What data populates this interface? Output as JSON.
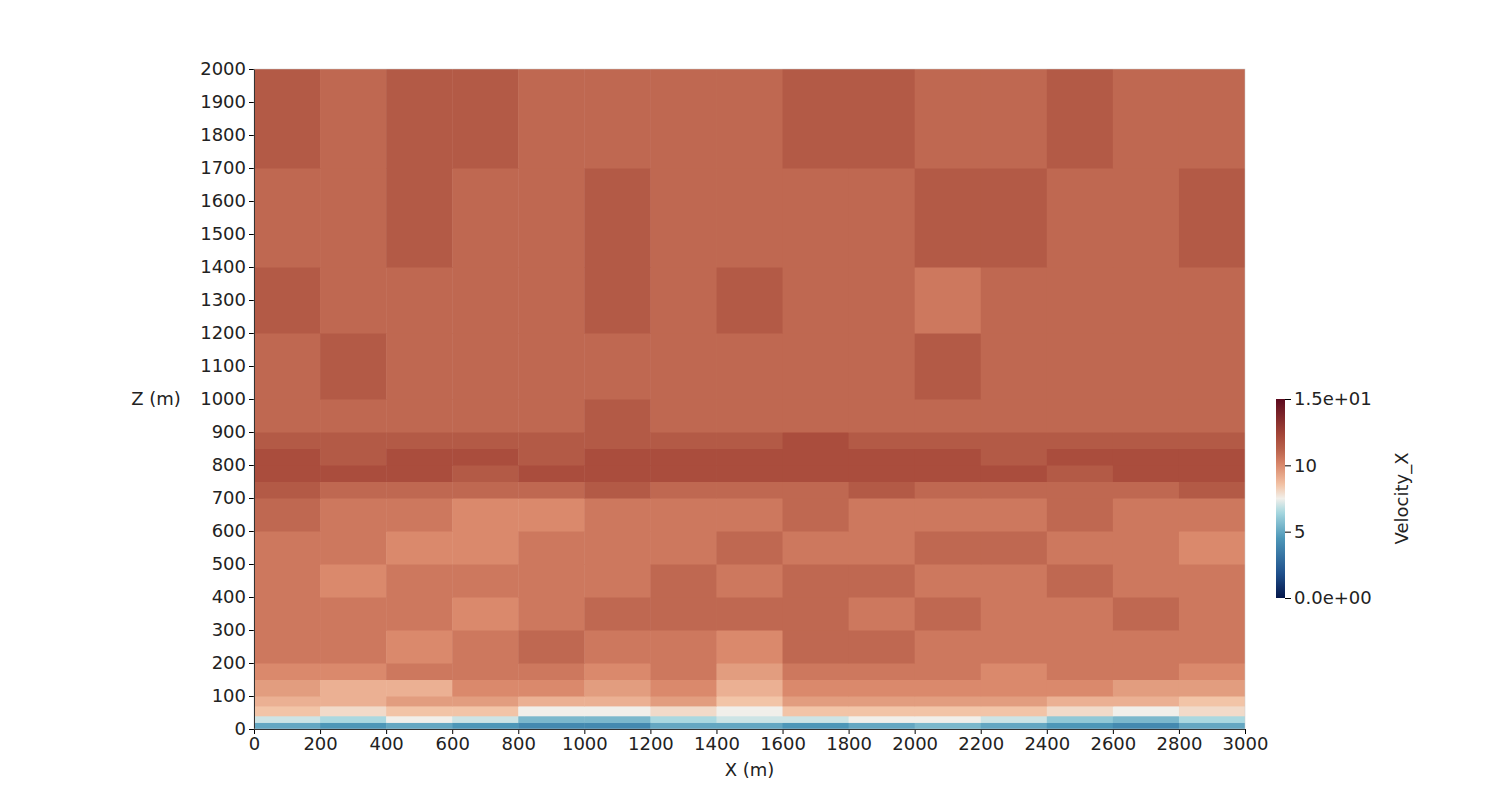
{
  "chart_data": {
    "type": "heatmap",
    "xlabel": "X (m)",
    "ylabel": "Z (m)",
    "xlim": [
      0,
      3000
    ],
    "ylim": [
      0,
      2000
    ],
    "xticks": [
      0,
      200,
      400,
      600,
      800,
      1000,
      1200,
      1400,
      1600,
      1800,
      2000,
      2200,
      2400,
      2600,
      2800,
      3000
    ],
    "yticks": [
      0,
      100,
      200,
      300,
      400,
      500,
      600,
      700,
      800,
      900,
      1000,
      1100,
      1200,
      1300,
      1400,
      1500,
      1600,
      1700,
      1800,
      1900,
      2000
    ],
    "x_edges": [
      0,
      200,
      400,
      600,
      800,
      1000,
      1200,
      1400,
      1600,
      1800,
      2000,
      2200,
      2400,
      2600,
      2800,
      3000
    ],
    "z_edges": [
      0,
      20,
      40,
      70,
      100,
      150,
      200,
      300,
      400,
      500,
      600,
      700,
      750,
      800,
      850,
      900,
      1000,
      1200,
      1400,
      1700,
      2000
    ],
    "values": [
      [
        5,
        4.5,
        5,
        4.5,
        4,
        4,
        5,
        5,
        4.5,
        5,
        5.5,
        5,
        4.5,
        4,
        5
      ],
      [
        7,
        6.5,
        7.5,
        7,
        5.5,
        5.5,
        6.5,
        7,
        7,
        7.5,
        7.5,
        7,
        6,
        5.5,
        6.5
      ],
      [
        8.5,
        8,
        8.5,
        8.5,
        7.5,
        7.5,
        8,
        7.5,
        8.5,
        8.5,
        8.5,
        8.5,
        8,
        7.5,
        8
      ],
      [
        9,
        9,
        9.5,
        9.5,
        9,
        9,
        9.5,
        8.5,
        9.5,
        9.5,
        9.5,
        9.5,
        9,
        9,
        8.5
      ],
      [
        9.5,
        9,
        9,
        10,
        10,
        9.5,
        10,
        9,
        10,
        10,
        10,
        10,
        10,
        9.5,
        9.5
      ],
      [
        10,
        10,
        10.5,
        10.5,
        10.5,
        10,
        10.5,
        9.5,
        10.5,
        10.5,
        10.5,
        10,
        10.5,
        10.5,
        10
      ],
      [
        10.5,
        10.5,
        10,
        10.5,
        11,
        10.5,
        10.5,
        10,
        11,
        11,
        10.5,
        10.5,
        10.5,
        10.5,
        10.5
      ],
      [
        10.5,
        10.5,
        10.5,
        10,
        10.5,
        11,
        11,
        11,
        11,
        10.5,
        11,
        10.5,
        10.5,
        11,
        10.5
      ],
      [
        10.5,
        10,
        10.5,
        10.5,
        10.5,
        10.5,
        11,
        10.5,
        11,
        11,
        10.5,
        10.5,
        11,
        10.5,
        10.5
      ],
      [
        10.5,
        10.5,
        10,
        10,
        10.5,
        10.5,
        10.5,
        11,
        10.5,
        10.5,
        11,
        11,
        10.5,
        10.5,
        10
      ],
      [
        11,
        10.5,
        10.5,
        10,
        10,
        10.5,
        10.5,
        10.5,
        11,
        10.5,
        10.5,
        10.5,
        11,
        10.5,
        10.5
      ],
      [
        11.5,
        11,
        11,
        11,
        11,
        11.5,
        11,
        11,
        11,
        11.5,
        11,
        11,
        11,
        11,
        11.5
      ],
      [
        12,
        12,
        12,
        11.5,
        12,
        12,
        12,
        12,
        12,
        12,
        12,
        12,
        11.5,
        12,
        12
      ],
      [
        12,
        11.5,
        12,
        12,
        11.5,
        12,
        12,
        12,
        12,
        12,
        12,
        11.5,
        12,
        12,
        12
      ],
      [
        11.5,
        11.5,
        11.5,
        11.5,
        11.5,
        11.5,
        11.5,
        11.5,
        12,
        11.5,
        11.5,
        11.5,
        11.5,
        11.5,
        11.5
      ],
      [
        11,
        11,
        11,
        11,
        11,
        11.5,
        11,
        11,
        11,
        11,
        11,
        11,
        11,
        11,
        11
      ],
      [
        11,
        11.5,
        11,
        11,
        11,
        11,
        11,
        11,
        11,
        11,
        11.5,
        11,
        11,
        11,
        11
      ],
      [
        11.5,
        11,
        11,
        11,
        11,
        11.5,
        11,
        11.5,
        11,
        11,
        10.5,
        11,
        11,
        11,
        11
      ],
      [
        11,
        11,
        11.5,
        11,
        11,
        11.5,
        11,
        11,
        11,
        11,
        11.5,
        11.5,
        11,
        11,
        11.5
      ],
      [
        11.5,
        11,
        11.5,
        11.5,
        11,
        11,
        11,
        11,
        11.5,
        11.5,
        11,
        11,
        11.5,
        11,
        11
      ]
    ],
    "colorbar": {
      "label": "Velocity_X",
      "range": [
        0,
        15
      ],
      "ticks": [
        {
          "value": 0,
          "label": "0.0e+00"
        },
        5,
        10,
        {
          "value": 15,
          "label": "1.5e+01"
        }
      ]
    }
  }
}
